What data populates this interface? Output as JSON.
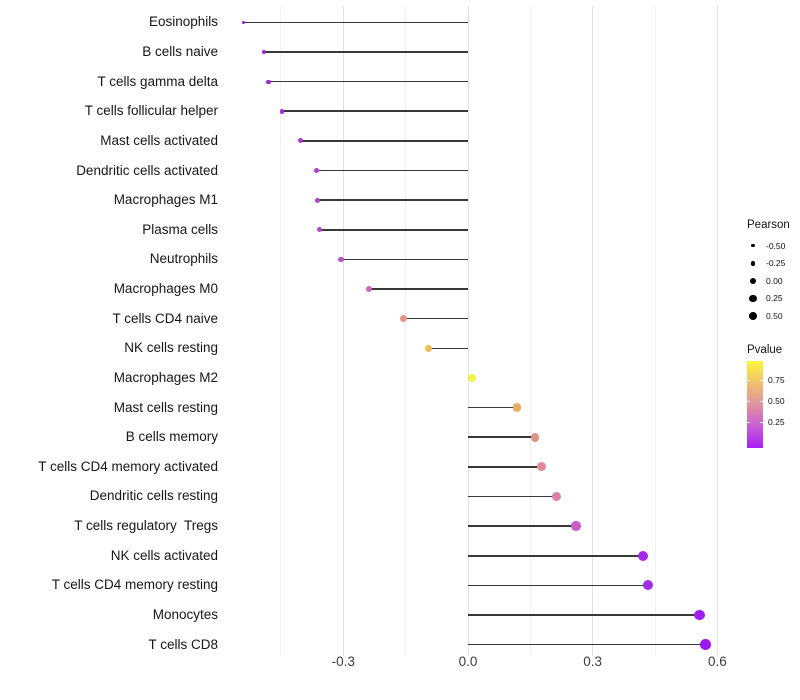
{
  "chart_data": {
    "type": "lollipop",
    "title": "",
    "xlabel": "",
    "ylabel": "",
    "grid": true,
    "xlim": [
      -0.592,
      0.63
    ],
    "x_major_ticks": [
      {
        "label": "-0.3",
        "value": -0.3
      },
      {
        "label": "0.0",
        "value": 0.0
      },
      {
        "label": "0.3",
        "value": 0.3
      },
      {
        "label": "0.6",
        "value": 0.6
      }
    ],
    "x_minor_ticks": [
      -0.45,
      -0.15,
      0.15,
      0.45
    ],
    "rows": [
      {
        "label": "Eosinophils",
        "pearson": -0.54,
        "color": "#8C20DC"
      },
      {
        "label": "B cells naive",
        "pearson": -0.49,
        "color": "#9426DA"
      },
      {
        "label": "T cells gamma delta",
        "pearson": -0.48,
        "color": "#9A2BD7"
      },
      {
        "label": "T cells follicular helper",
        "pearson": -0.447,
        "color": "#A032D4"
      },
      {
        "label": "Mast cells activated",
        "pearson": -0.404,
        "color": "#A83AD0"
      },
      {
        "label": "Dendritic cells activated",
        "pearson": -0.365,
        "color": "#AC40CE"
      },
      {
        "label": "Macrophages M1",
        "pearson": -0.362,
        "color": "#AE43CC"
      },
      {
        "label": "Plasma cells",
        "pearson": -0.357,
        "color": "#B046CB"
      },
      {
        "label": "Neutrophils",
        "pearson": -0.305,
        "color": "#B751C7"
      },
      {
        "label": "Macrophages M0",
        "pearson": -0.238,
        "color": "#C966B5"
      },
      {
        "label": "T cells CD4 naive",
        "pearson": -0.155,
        "color": "#E4938B"
      },
      {
        "label": "NK cells resting",
        "pearson": -0.095,
        "color": "#EDBE55"
      },
      {
        "label": "Macrophages M2",
        "pearson": 0.01,
        "color": "#F5F243"
      },
      {
        "label": "Mast cells resting",
        "pearson": 0.118,
        "color": "#EBAD63"
      },
      {
        "label": "B cells memory",
        "pearson": 0.161,
        "color": "#E39284"
      },
      {
        "label": "T cells CD4 memory activated",
        "pearson": 0.176,
        "color": "#E18C93"
      },
      {
        "label": "Dendritic cells resting",
        "pearson": 0.212,
        "color": "#DC80A7"
      },
      {
        "label": "T cells regulatory  Tregs",
        "pearson": 0.26,
        "color": "#C75FC9"
      },
      {
        "label": "NK cells activated",
        "pearson": 0.421,
        "color": "#A42BE5"
      },
      {
        "label": "T cells CD4 memory resting",
        "pearson": 0.434,
        "color": "#A32BE5"
      },
      {
        "label": "Monocytes",
        "pearson": 0.557,
        "color": "#9D1FEA"
      },
      {
        "label": "T cells CD8",
        "pearson": 0.572,
        "color": "#9A1BEC"
      }
    ],
    "legend_size": {
      "title": "Pearson",
      "entries": [
        {
          "label": "-0.50",
          "value": -0.5
        },
        {
          "label": "-0.25",
          "value": -0.25
        },
        {
          "label": "0.00",
          "value": 0.0
        },
        {
          "label": "0.25",
          "value": 0.25
        },
        {
          "label": "0.50",
          "value": 0.5
        }
      ]
    },
    "legend_color": {
      "title": "Pvalue",
      "labels": [
        "0.75",
        "0.50",
        "0.25"
      ],
      "gradient": [
        "#FBF73C",
        "#F0C06E",
        "#E092A0",
        "#C75FD4",
        "#AA1FF6"
      ]
    }
  },
  "colors": {
    "stem": "#383838",
    "grid_major": "#e2e2e2",
    "grid_minor": "#f2f2f2",
    "legend_dot": "#000000",
    "background": "#ffffff"
  }
}
